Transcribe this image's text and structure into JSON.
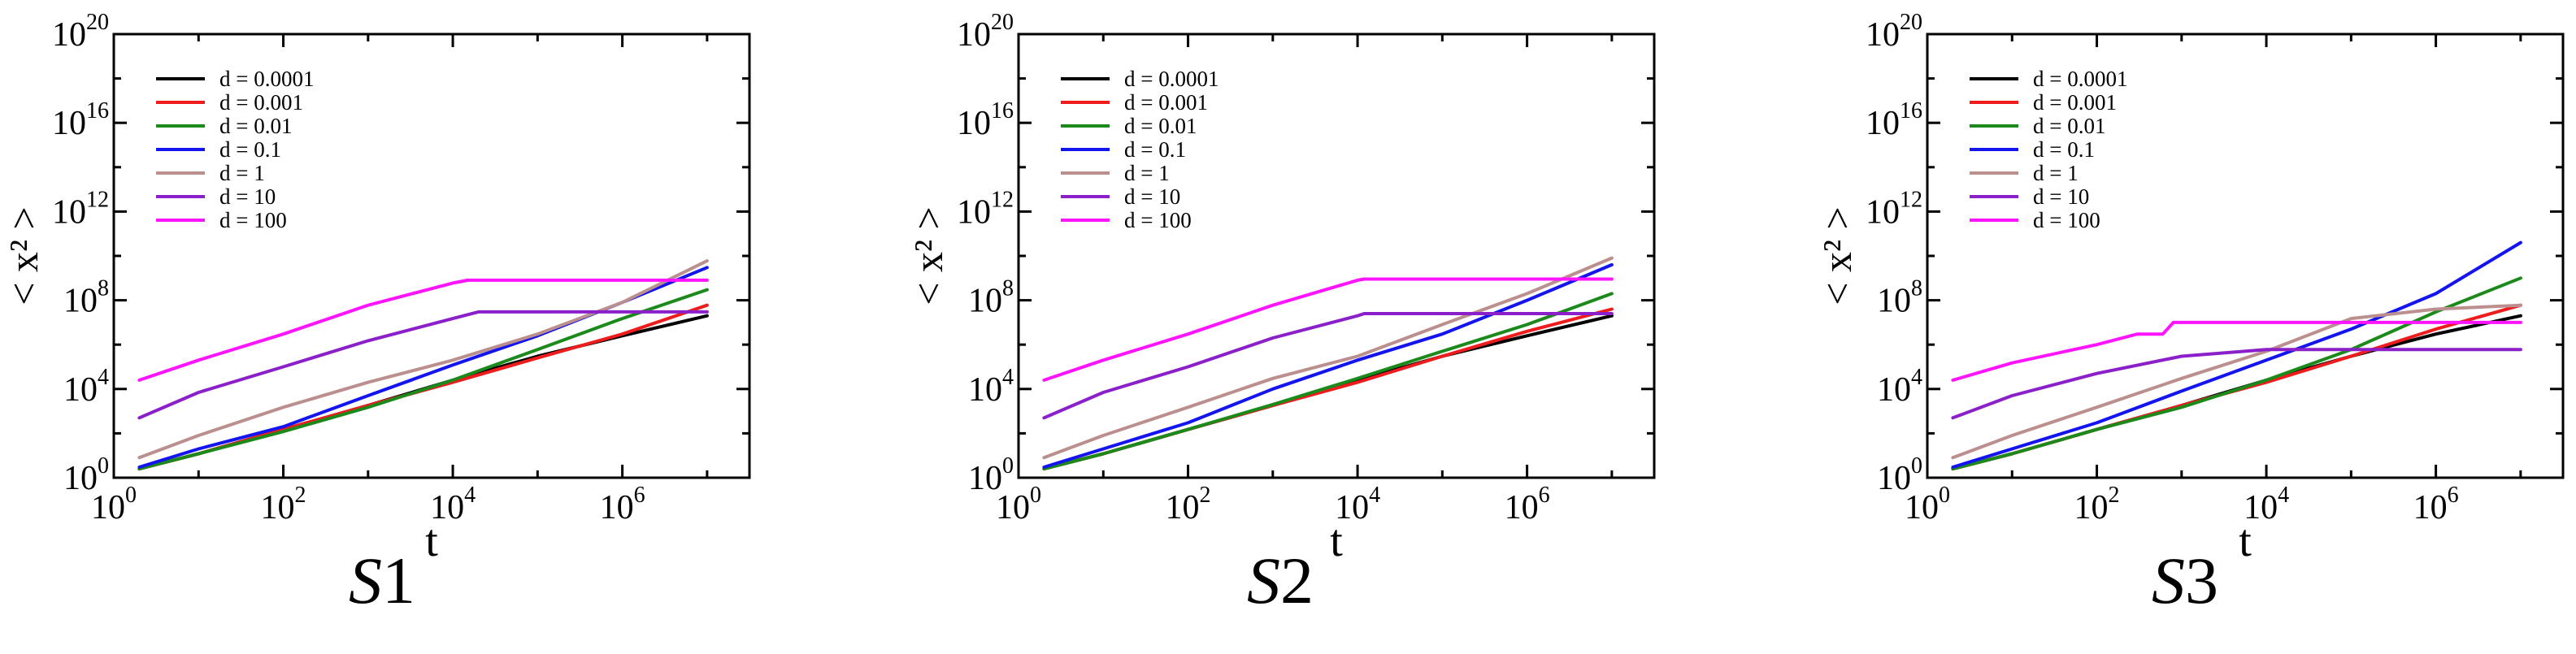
{
  "colors": {
    "d0.0001": "#000000",
    "d0.001": "#ee1c1c",
    "d0.01": "#1b8a1b",
    "d0.1": "#1414ee",
    "d1": "#bc8f8f",
    "d10": "#8b1fc9",
    "d100": "#ff14ff"
  },
  "chart_data": [
    {
      "type": "line",
      "panel_label_letter": "S",
      "panel_label_number": "1",
      "xlabel": "t",
      "ylabel": "< x² >",
      "xscale": "log",
      "yscale": "log",
      "xlim": [
        1,
        31622777
      ],
      "ylim": [
        1,
        1e+20
      ],
      "x_ticks": [
        "10^0",
        "10^2",
        "10^4",
        "10^6"
      ],
      "y_ticks": [
        "10^0",
        "10^4",
        "10^8",
        "10^12",
        "10^16",
        "10^20"
      ],
      "legend_position": "top-left",
      "series": [
        {
          "name": "d = 0.0001",
          "color_key": "d0.0001",
          "points": [
            [
              2,
              2.5
            ],
            [
              10,
              12
            ],
            [
              100,
              150
            ],
            [
              1000,
              1800
            ],
            [
              10000,
              25000
            ],
            [
              100000,
              300000
            ],
            [
              1000000,
              2500000
            ],
            [
              10000000,
              20000000
            ]
          ]
        },
        {
          "name": "d = 0.001",
          "color_key": "d0.001",
          "points": [
            [
              2,
              2.5
            ],
            [
              10,
              12
            ],
            [
              100,
              150
            ],
            [
              1000,
              1800
            ],
            [
              10000,
              20000
            ],
            [
              100000,
              250000
            ],
            [
              1000000,
              3000000
            ],
            [
              10000000,
              60000000
            ]
          ]
        },
        {
          "name": "d = 0.01",
          "color_key": "d0.01",
          "points": [
            [
              2,
              2.5
            ],
            [
              10,
              12
            ],
            [
              100,
              120
            ],
            [
              1000,
              1500
            ],
            [
              10000,
              25000
            ],
            [
              100000,
              600000
            ],
            [
              1000000,
              15000000
            ],
            [
              10000000,
              300000000
            ]
          ]
        },
        {
          "name": "d = 0.1",
          "color_key": "d0.1",
          "points": [
            [
              2,
              3
            ],
            [
              10,
              20
            ],
            [
              100,
              200
            ],
            [
              1000,
              5000
            ],
            [
              10000,
              120000
            ],
            [
              100000,
              2500000
            ],
            [
              1000000,
              80000000
            ],
            [
              10000000,
              3000000000
            ]
          ]
        },
        {
          "name": "d = 1",
          "color_key": "d1",
          "points": [
            [
              2,
              8
            ],
            [
              10,
              80
            ],
            [
              100,
              1500
            ],
            [
              1000,
              20000
            ],
            [
              10000,
              200000
            ],
            [
              100000,
              3000000
            ],
            [
              1000000,
              80000000
            ],
            [
              10000000,
              6000000000
            ]
          ]
        },
        {
          "name": "d = 10",
          "color_key": "d10",
          "points": [
            [
              2,
              500
            ],
            [
              10,
              7000
            ],
            [
              100,
              100000
            ],
            [
              1000,
              1500000
            ],
            [
              10000,
              15000000
            ],
            [
              20000,
              30000000
            ],
            [
              10000000,
              30000000
            ]
          ]
        },
        {
          "name": "d = 100",
          "color_key": "d100",
          "points": [
            [
              2,
              25000
            ],
            [
              10,
              200000
            ],
            [
              100,
              3000000
            ],
            [
              1000,
              60000000
            ],
            [
              10000,
              600000000
            ],
            [
              15000,
              800000000
            ],
            [
              10000000,
              800000000
            ]
          ]
        }
      ]
    },
    {
      "type": "line",
      "panel_label_letter": "S",
      "panel_label_number": "2",
      "xlabel": "t",
      "ylabel": "< x² >",
      "xscale": "log",
      "yscale": "log",
      "xlim": [
        1,
        31622777
      ],
      "ylim": [
        1,
        1e+20
      ],
      "x_ticks": [
        "10^0",
        "10^2",
        "10^4",
        "10^6"
      ],
      "y_ticks": [
        "10^0",
        "10^4",
        "10^8",
        "10^12",
        "10^16",
        "10^20"
      ],
      "legend_position": "top-left",
      "series": [
        {
          "name": "d = 0.0001",
          "color_key": "d0.0001",
          "points": [
            [
              2,
              2.5
            ],
            [
              10,
              12
            ],
            [
              100,
              150
            ],
            [
              1000,
              1800
            ],
            [
              10000,
              25000
            ],
            [
              100000,
              300000
            ],
            [
              1000000,
              2500000
            ],
            [
              10000000,
              20000000
            ]
          ]
        },
        {
          "name": "d = 0.001",
          "color_key": "d0.001",
          "points": [
            [
              2,
              2.5
            ],
            [
              10,
              12
            ],
            [
              100,
              150
            ],
            [
              1000,
              1800
            ],
            [
              10000,
              20000
            ],
            [
              100000,
              300000
            ],
            [
              1000000,
              4000000
            ],
            [
              10000000,
              40000000
            ]
          ]
        },
        {
          "name": "d = 0.01",
          "color_key": "d0.01",
          "points": [
            [
              2,
              2.5
            ],
            [
              10,
              12
            ],
            [
              100,
              150
            ],
            [
              1000,
              2000
            ],
            [
              10000,
              30000
            ],
            [
              100000,
              500000
            ],
            [
              1000000,
              8000000
            ],
            [
              10000000,
              200000000
            ]
          ]
        },
        {
          "name": "d = 0.1",
          "color_key": "d0.1",
          "points": [
            [
              2,
              3
            ],
            [
              10,
              20
            ],
            [
              100,
              300
            ],
            [
              1000,
              10000
            ],
            [
              10000,
              200000
            ],
            [
              100000,
              3000000
            ],
            [
              1000000,
              100000000
            ],
            [
              10000000,
              4000000000
            ]
          ]
        },
        {
          "name": "d = 1",
          "color_key": "d1",
          "points": [
            [
              2,
              8
            ],
            [
              10,
              80
            ],
            [
              100,
              1500
            ],
            [
              1000,
              30000
            ],
            [
              10000,
              300000
            ],
            [
              100000,
              8000000
            ],
            [
              1000000,
              200000000
            ],
            [
              10000000,
              8000000000
            ]
          ]
        },
        {
          "name": "d = 10",
          "color_key": "d10",
          "points": [
            [
              2,
              500
            ],
            [
              10,
              7000
            ],
            [
              100,
              100000
            ],
            [
              1000,
              2000000
            ],
            [
              10000,
              20000000
            ],
            [
              12000,
              25000000
            ],
            [
              10000000,
              25000000
            ]
          ]
        },
        {
          "name": "d = 100",
          "color_key": "d100",
          "points": [
            [
              2,
              25000
            ],
            [
              10,
              200000
            ],
            [
              100,
              3000000
            ],
            [
              1000,
              60000000
            ],
            [
              10000,
              800000000
            ],
            [
              12000,
              900000000
            ],
            [
              10000000,
              900000000
            ]
          ]
        }
      ]
    },
    {
      "type": "line",
      "panel_label_letter": "S",
      "panel_label_number": "3",
      "xlabel": "t",
      "ylabel": "< x² >",
      "xscale": "log",
      "yscale": "log",
      "xlim": [
        1,
        31622777
      ],
      "ylim": [
        1,
        1e+20
      ],
      "x_ticks": [
        "10^0",
        "10^2",
        "10^4",
        "10^6"
      ],
      "y_ticks": [
        "10^0",
        "10^4",
        "10^8",
        "10^12",
        "10^16",
        "10^20"
      ],
      "legend_position": "top-left",
      "series": [
        {
          "name": "d = 0.0001",
          "color_key": "d0.0001",
          "points": [
            [
              2,
              2.5
            ],
            [
              10,
              12
            ],
            [
              100,
              150
            ],
            [
              1000,
              1800
            ],
            [
              10000,
              25000
            ],
            [
              100000,
              300000
            ],
            [
              1000000,
              3000000
            ],
            [
              10000000,
              20000000
            ]
          ]
        },
        {
          "name": "d = 0.001",
          "color_key": "d0.001",
          "points": [
            [
              2,
              2.5
            ],
            [
              10,
              12
            ],
            [
              100,
              150
            ],
            [
              1000,
              1800
            ],
            [
              10000,
              20000
            ],
            [
              100000,
              300000
            ],
            [
              1000000,
              5000000
            ],
            [
              10000000,
              60000000
            ]
          ]
        },
        {
          "name": "d = 0.01",
          "color_key": "d0.01",
          "points": [
            [
              2,
              2.5
            ],
            [
              10,
              12
            ],
            [
              100,
              150
            ],
            [
              1000,
              1500
            ],
            [
              10000,
              25000
            ],
            [
              100000,
              600000
            ],
            [
              1000000,
              30000000
            ],
            [
              10000000,
              1000000000
            ]
          ]
        },
        {
          "name": "d = 0.1",
          "color_key": "d0.1",
          "points": [
            [
              2,
              3
            ],
            [
              10,
              20
            ],
            [
              100,
              300
            ],
            [
              1000,
              8000
            ],
            [
              10000,
              200000
            ],
            [
              100000,
              5000000
            ],
            [
              1000000,
              200000000
            ],
            [
              10000000,
              40000000000
            ]
          ]
        },
        {
          "name": "d = 1",
          "color_key": "d1",
          "points": [
            [
              2,
              8
            ],
            [
              10,
              80
            ],
            [
              100,
              1500
            ],
            [
              1000,
              30000
            ],
            [
              10000,
              500000
            ],
            [
              100000,
              15000000
            ],
            [
              1000000,
              40000000
            ],
            [
              10000000,
              60000000
            ]
          ]
        },
        {
          "name": "d = 10",
          "color_key": "d10",
          "points": [
            [
              2,
              500
            ],
            [
              10,
              5000
            ],
            [
              100,
              50000
            ],
            [
              1000,
              300000
            ],
            [
              10000,
              600000
            ],
            [
              10000000,
              600000
            ]
          ]
        },
        {
          "name": "d = 100",
          "color_key": "d100",
          "points": [
            [
              2,
              25000
            ],
            [
              10,
              150000
            ],
            [
              100,
              1000000
            ],
            [
              300,
              3000000
            ],
            [
              600,
              3000000
            ],
            [
              800,
              10000000
            ],
            [
              10000000,
              10000000
            ]
          ]
        }
      ]
    }
  ]
}
